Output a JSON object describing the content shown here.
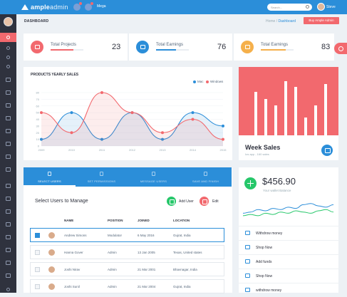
{
  "app": {
    "logo_main": "ample",
    "logo_accent": "admin",
    "mega_label": "Mega",
    "search_placeholder": "Search...",
    "user_name": "Steve"
  },
  "header": {
    "title": "DASHBOARD",
    "crumb_home": "Home",
    "crumb_sep": "/",
    "crumb_current": "Dashboard",
    "buy_label": "Buy Ample Admin"
  },
  "stats": [
    {
      "label": "Total Projects",
      "value": "23",
      "color": "#f2696e",
      "progress": 0.7,
      "icon": "calendar-icon"
    },
    {
      "label": "Total Earnings",
      "value": "76",
      "color": "#2b8ed9",
      "progress": 0.6,
      "icon": "wallet-icon"
    },
    {
      "label": "Total Earnings",
      "value": "83",
      "color": "#f5b04b",
      "progress": 0.75,
      "icon": "dollar-icon"
    }
  ],
  "yearly": {
    "title": "PRODUCTS YEARLY SALES",
    "legend": [
      {
        "name": "Mac",
        "color": "#2b8ed9"
      },
      {
        "name": "Windows",
        "color": "#f2696e"
      }
    ]
  },
  "chart_data": {
    "type": "area",
    "title": "PRODUCTS YEARLY SALES",
    "x": [
      "2009",
      "2010",
      "2011",
      "2012",
      "2013",
      "2014",
      "2015"
    ],
    "ylim": [
      0,
      100
    ],
    "yticks": [
      0,
      10,
      20,
      30,
      40,
      50,
      60,
      70,
      80
    ],
    "grid": true,
    "legend_position": "top-right",
    "series": [
      {
        "name": "Mac",
        "color": "#2b8ed9",
        "values": [
          10,
          50,
          10,
          50,
          10,
          50,
          30
        ]
      },
      {
        "name": "Windows",
        "color": "#f2696e",
        "values": [
          50,
          20,
          80,
          50,
          20,
          40,
          10
        ]
      }
    ]
  },
  "week": {
    "title": "Week Sales",
    "subtitle": "Ios app - 160 sales",
    "bars": [
      0.72,
      0.6,
      0.5,
      0.9,
      0.8,
      0.3,
      0.5,
      0.85
    ]
  },
  "wizard": {
    "steps": [
      {
        "label": "SELECT USERS"
      },
      {
        "label": "SET PERMISSIONS"
      },
      {
        "label": "MESSAGE USERS"
      },
      {
        "label": "SAVE AND FINISH"
      }
    ],
    "title": "Select Users to Manage",
    "add_user": "Add User",
    "edit": "Edit",
    "columns": [
      "NAME",
      "POSITION",
      "JOINED",
      "LOCATION"
    ],
    "rows": [
      {
        "name": "Andrew Simons",
        "position": "Modulator",
        "joined": "6 May 2016",
        "location": "Gujrat, India",
        "selected": true
      },
      {
        "name": "Hanna Gover",
        "position": "Admin",
        "joined": "13 Jan 2005",
        "location": "Texas, United states",
        "selected": false
      },
      {
        "name": "Joshi Nirav",
        "position": "Admin",
        "joined": "21 Mar 2001",
        "location": "Bhavnagar, India",
        "selected": false
      },
      {
        "name": "Joshi Sunil",
        "position": "Admin",
        "joined": "21 Mar 2004",
        "location": "Gujrat, India",
        "selected": false
      }
    ]
  },
  "wallet": {
    "amount": "$456.90",
    "subtitle": "Your wallet Balance",
    "sparkline": [
      {
        "color": "#2b8ed9",
        "values": [
          5,
          6,
          8,
          7,
          9,
          8,
          10,
          9,
          12,
          13,
          11,
          10,
          12
        ]
      },
      {
        "color": "#26c76a",
        "values": [
          3,
          4,
          3,
          5,
          4,
          6,
          5,
          7,
          6,
          5,
          7,
          8,
          6
        ]
      }
    ],
    "items": [
      {
        "label": "Withdrow money"
      },
      {
        "label": "Shop Now"
      },
      {
        "label": "Add funds"
      },
      {
        "label": "Shop Now"
      },
      {
        "label": "withdrow money"
      }
    ]
  }
}
